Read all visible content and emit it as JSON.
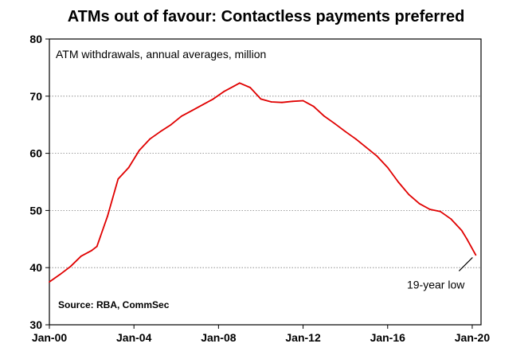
{
  "title": "ATMs out of favour: Contactless payments preferred",
  "subtitle": "ATM withdrawals, annual averages, million",
  "source": "Source: RBA, CommSec",
  "colors": {
    "line": "#e00000",
    "grid": "#808080",
    "axis": "#000000"
  },
  "chart_data": {
    "type": "line",
    "title": "ATMs out of favour: Contactless payments preferred",
    "subtitle": "ATM withdrawals, annual averages, million",
    "xlabel": "",
    "ylabel": "",
    "xlim": [
      "2000-01",
      "2020-06"
    ],
    "ylim": [
      30,
      80
    ],
    "y_ticks": [
      30,
      40,
      50,
      60,
      70,
      80
    ],
    "x_ticks": [
      "Jan-00",
      "Jan-04",
      "Jan-08",
      "Jan-12",
      "Jan-16",
      "Jan-20"
    ],
    "grid": "horizontal dotted",
    "annotation": {
      "text": "19-year low",
      "points_to": "2020-03"
    },
    "series": [
      {
        "color": "#e00000",
        "points": [
          [
            "2000-01",
            37.5
          ],
          [
            "2000-07",
            38.8
          ],
          [
            "2001-01",
            40.2
          ],
          [
            "2001-07",
            42.0
          ],
          [
            "2002-01",
            43.0
          ],
          [
            "2002-04",
            43.7
          ],
          [
            "2002-10",
            49.0
          ],
          [
            "2003-04",
            55.5
          ],
          [
            "2003-10",
            57.5
          ],
          [
            "2004-04",
            60.5
          ],
          [
            "2004-10",
            62.5
          ],
          [
            "2005-04",
            63.8
          ],
          [
            "2005-10",
            65.0
          ],
          [
            "2006-04",
            66.5
          ],
          [
            "2006-10",
            67.5
          ],
          [
            "2007-04",
            68.5
          ],
          [
            "2007-10",
            69.5
          ],
          [
            "2008-04",
            70.8
          ],
          [
            "2008-10",
            71.8
          ],
          [
            "2009-01",
            72.3
          ],
          [
            "2009-07",
            71.5
          ],
          [
            "2010-01",
            69.5
          ],
          [
            "2010-07",
            69.0
          ],
          [
            "2011-01",
            68.9
          ],
          [
            "2011-07",
            69.1
          ],
          [
            "2012-01",
            69.2
          ],
          [
            "2012-07",
            68.2
          ],
          [
            "2013-01",
            66.5
          ],
          [
            "2013-07",
            65.2
          ],
          [
            "2014-01",
            63.8
          ],
          [
            "2014-07",
            62.5
          ],
          [
            "2015-01",
            61.0
          ],
          [
            "2015-07",
            59.5
          ],
          [
            "2016-01",
            57.5
          ],
          [
            "2016-07",
            55.0
          ],
          [
            "2017-01",
            52.8
          ],
          [
            "2017-07",
            51.2
          ],
          [
            "2018-01",
            50.2
          ],
          [
            "2018-07",
            49.8
          ],
          [
            "2019-01",
            48.5
          ],
          [
            "2019-07",
            46.5
          ],
          [
            "2019-10",
            45.0
          ],
          [
            "2020-03",
            42.2
          ]
        ]
      }
    ]
  }
}
